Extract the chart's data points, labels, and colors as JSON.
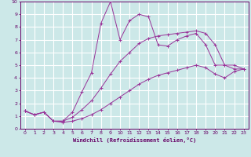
{
  "xlabel": "Windchill (Refroidissement éolien,°C)",
  "xlim": [
    -0.5,
    23.5
  ],
  "ylim": [
    0,
    10
  ],
  "xticks": [
    0,
    1,
    2,
    3,
    4,
    5,
    6,
    7,
    8,
    9,
    10,
    11,
    12,
    13,
    14,
    15,
    16,
    17,
    18,
    19,
    20,
    21,
    22,
    23
  ],
  "yticks": [
    0,
    1,
    2,
    3,
    4,
    5,
    6,
    7,
    8,
    9,
    10
  ],
  "bg_color": "#cce8e8",
  "grid_color": "#ffffff",
  "line_color": "#993399",
  "line1_x": [
    0,
    1,
    2,
    3,
    4,
    5,
    6,
    7,
    8,
    9,
    10,
    11,
    12,
    13,
    14,
    15,
    16,
    17,
    18,
    19,
    20,
    21,
    22,
    23
  ],
  "line1_y": [
    1.4,
    1.1,
    1.3,
    0.6,
    0.6,
    1.3,
    2.9,
    4.4,
    8.3,
    10.0,
    7.0,
    8.5,
    9.0,
    8.8,
    6.6,
    6.5,
    7.0,
    7.3,
    7.5,
    6.6,
    5.0,
    5.0,
    4.7,
    4.7
  ],
  "line2_x": [
    0,
    1,
    2,
    3,
    4,
    5,
    6,
    7,
    8,
    9,
    10,
    11,
    12,
    13,
    14,
    15,
    16,
    17,
    18,
    19,
    20,
    21,
    22,
    23
  ],
  "line2_y": [
    1.4,
    1.1,
    1.3,
    0.6,
    0.6,
    0.9,
    1.5,
    2.2,
    3.2,
    4.3,
    5.3,
    6.0,
    6.7,
    7.1,
    7.3,
    7.4,
    7.5,
    7.6,
    7.7,
    7.5,
    6.6,
    5.0,
    5.0,
    4.7
  ],
  "line3_x": [
    0,
    1,
    2,
    3,
    4,
    5,
    6,
    7,
    8,
    9,
    10,
    11,
    12,
    13,
    14,
    15,
    16,
    17,
    18,
    19,
    20,
    21,
    22,
    23
  ],
  "line3_y": [
    1.4,
    1.1,
    1.3,
    0.6,
    0.5,
    0.6,
    0.8,
    1.1,
    1.5,
    2.0,
    2.5,
    3.0,
    3.5,
    3.9,
    4.2,
    4.4,
    4.6,
    4.8,
    5.0,
    4.8,
    4.3,
    4.0,
    4.5,
    4.7
  ]
}
